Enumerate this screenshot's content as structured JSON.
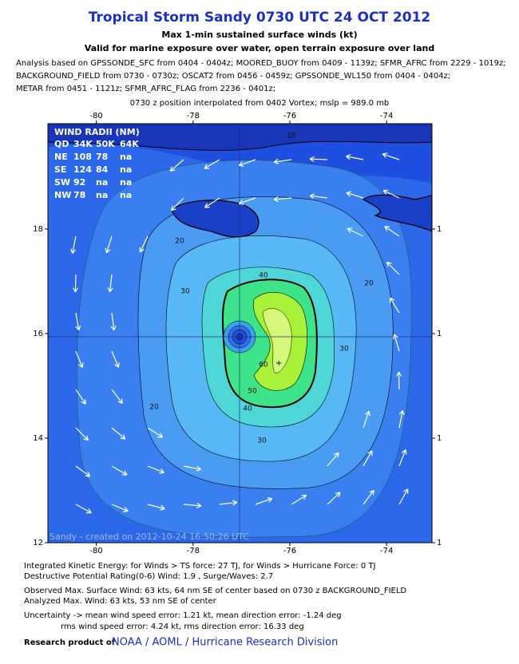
{
  "header": {
    "title": "Tropical Storm Sandy 0730 UTC 24 OCT 2012",
    "subtitle": "Max 1-min sustained surface winds (kt)",
    "subtitle2": "Valid for marine exposure over water, open terrain exposure over land",
    "analysis_lines": [
      "Analysis based on GPSSONDE_SFC from 0404 - 0404z; MOORED_BUOY from 0409 - 1139z; SFMR_AFRC from 2229 - 1019z;",
      "BACKGROUND_FIELD from 0730 - 0730z; OSCAT2 from 0456 - 0459z; GPSSONDE_WL150 from 0404 - 0404z;",
      "METAR from 0451 - 1121z; SFMR_AFRC_FLAG from 2236 - 0401z;"
    ],
    "position_note": "0730 z position interpolated from 0402 Vortex; mslp = 989.0 mb"
  },
  "map": {
    "lon_ticks": [
      -80,
      -78,
      -76,
      -74
    ],
    "lat_ticks": [
      12,
      14,
      16,
      18
    ],
    "right_labels": [
      "1",
      "1",
      "1",
      "1"
    ],
    "contour_labels": [
      "10",
      "20",
      "20",
      "20",
      "30",
      "30",
      "30",
      "40",
      "40",
      "50",
      "60"
    ],
    "credit": "Sandy - created on 2012-10-24 16:50:26 UTC"
  },
  "wind_radii": {
    "title": "WIND RADII (NM)",
    "columns": [
      "QD",
      "34K",
      "50K",
      "64K"
    ],
    "rows": [
      [
        "NE",
        "108",
        "78",
        "na"
      ],
      [
        "SE",
        "124",
        "84",
        "na"
      ],
      [
        "SW",
        "92",
        "na",
        "na"
      ],
      [
        "NW",
        "78",
        "na",
        "na"
      ]
    ]
  },
  "footer": {
    "lines": [
      "Integrated Kinetic Energy: for Winds > TS force: 27 TJ, for Winds > Hurricane Force: 0 TJ",
      "Destructive Potential Rating(0-6)  Wind: 1.9 , Surge/Waves: 2.7",
      "Observed Max. Surface Wind: 63 kts, 64 nm SE of center based on 0730 z BACKGROUND_FIELD",
      "Analyzed Max. Wind: 63 kts, 53 nm  SE of center",
      "Uncertainty -> mean wind speed error: 1.21 kt, mean direction error:  -1.24 deg",
      "rms wind speed error: 4.24 kt, rms direction error: 16.33 deg"
    ],
    "research_prefix": "Research product of",
    "research_org": "NOAA / AOML / Hurricane Research Division"
  }
}
